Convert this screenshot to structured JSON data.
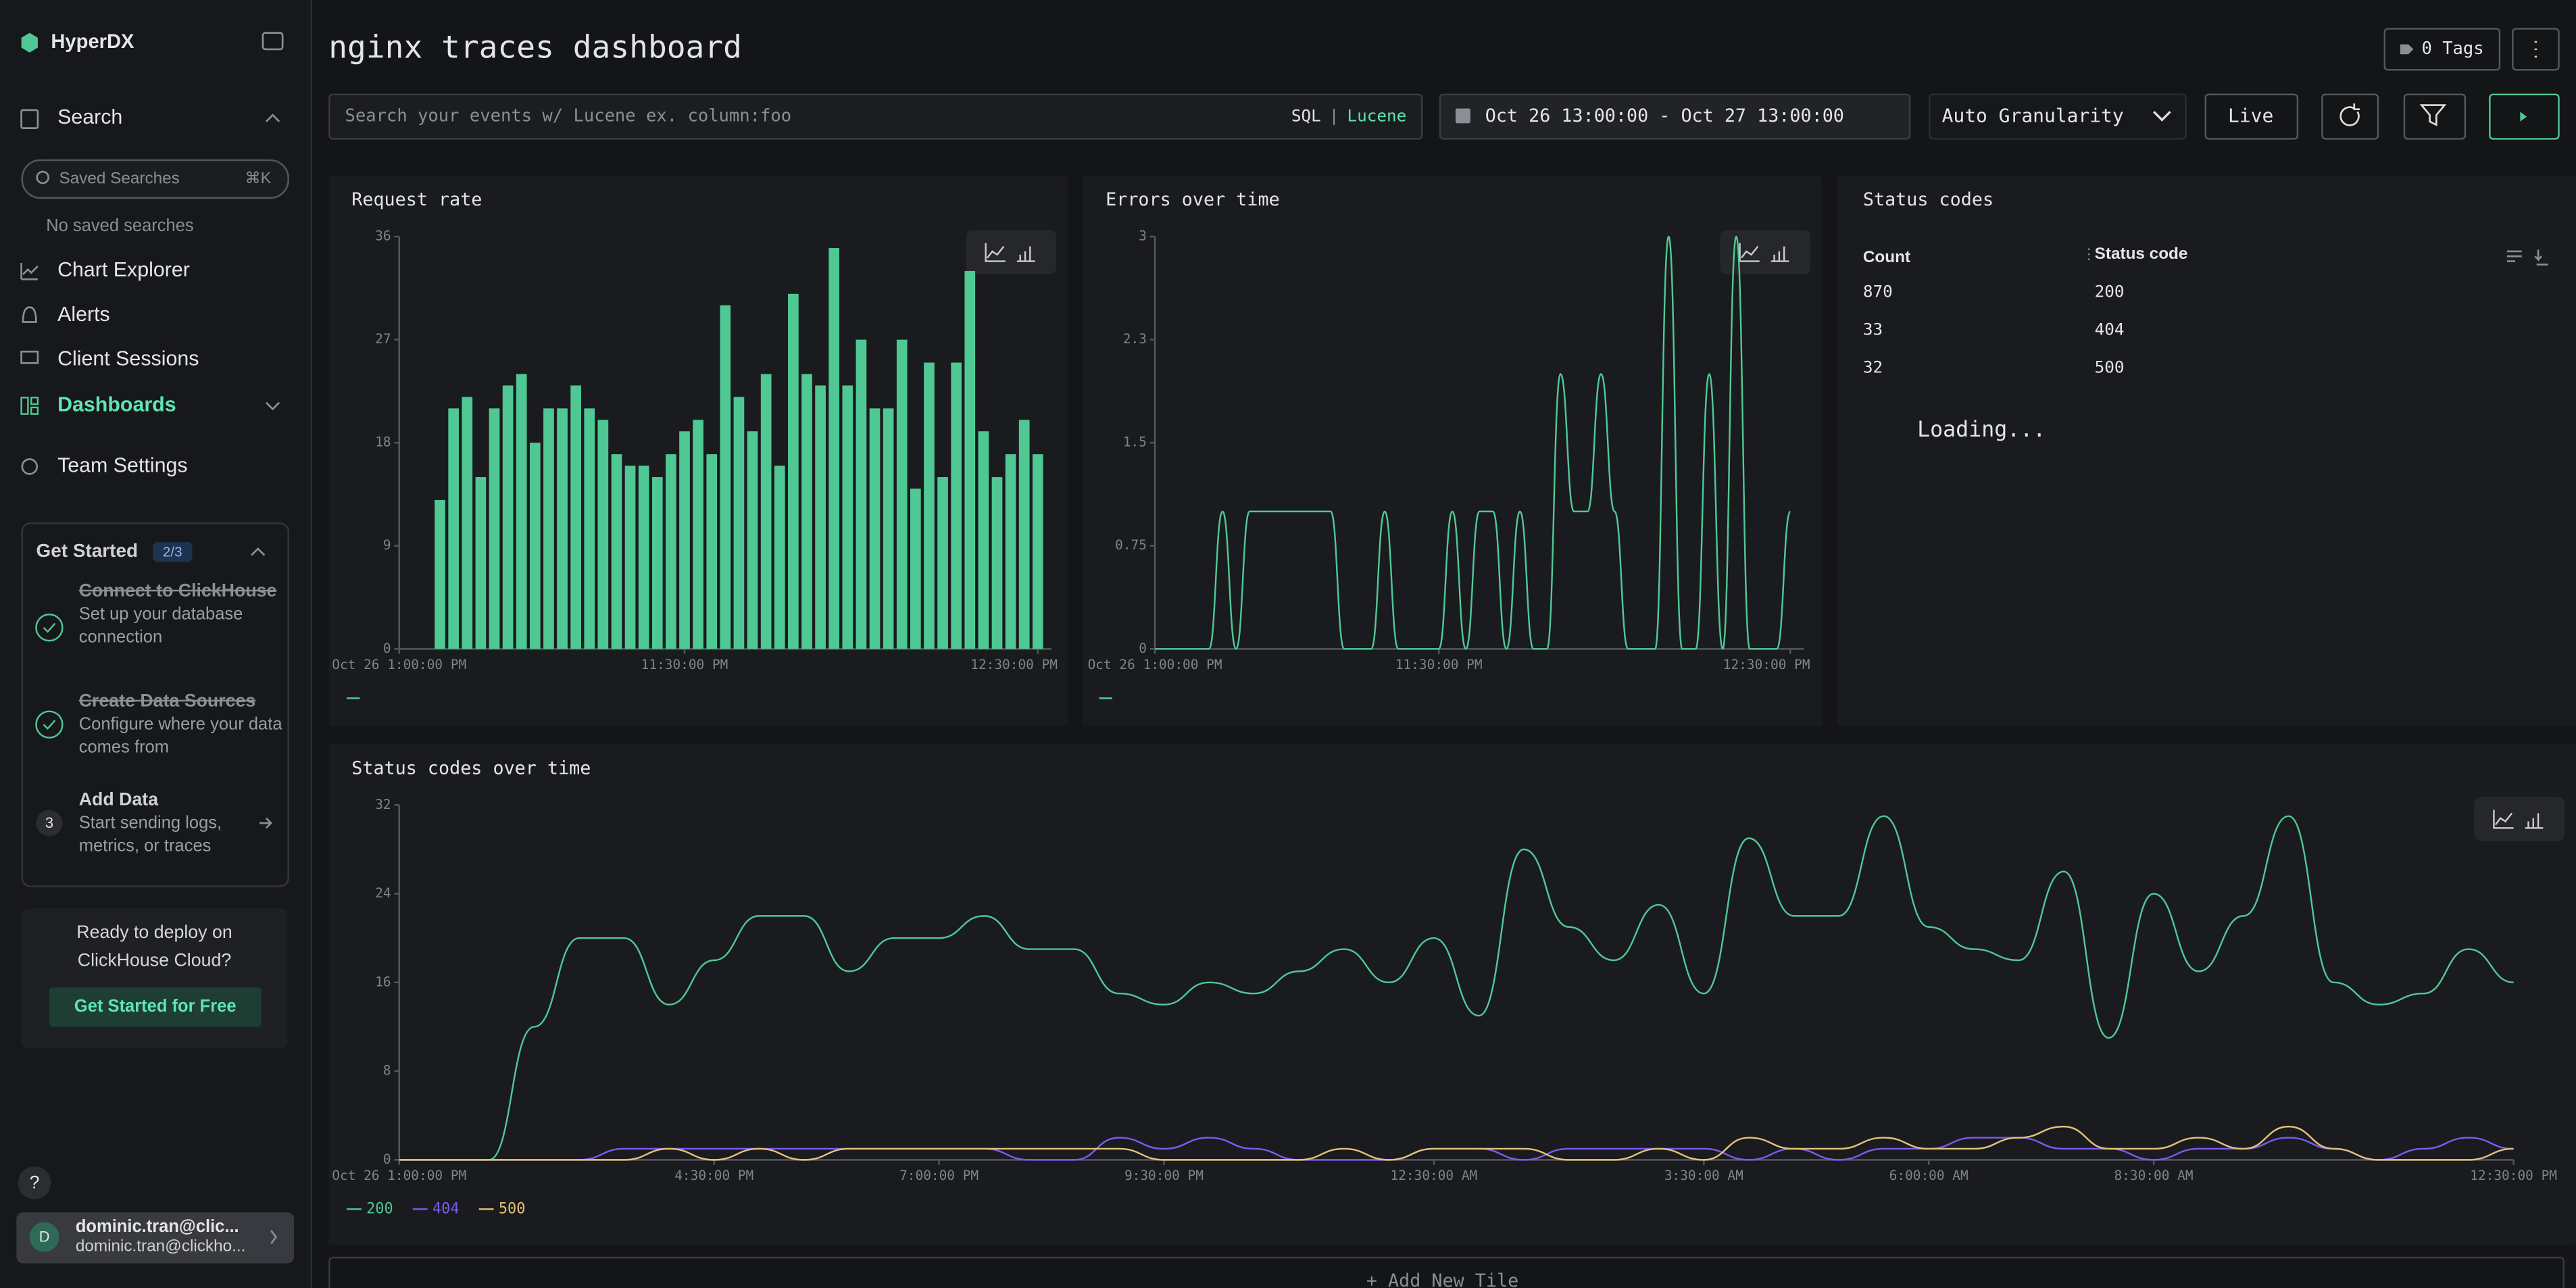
{
  "sidebar": {
    "brand": "HyperDX",
    "search": "Search",
    "saved_search_placeholder": "Saved Searches",
    "shortcut": "⌘K",
    "no_saved": "No saved searches",
    "nav": [
      "Chart Explorer",
      "Alerts",
      "Client Sessions",
      "Dashboards",
      "Team Settings"
    ],
    "get_started": {
      "title": "Get Started",
      "progress": "2/3",
      "steps": [
        {
          "title": "Connect to ClickHouse",
          "description": "Set up your database connection"
        },
        {
          "title": "Create Data Sources",
          "description": "Configure where your data comes from"
        },
        {
          "number": "3",
          "title": "Add Data",
          "description": "Start sending logs, metrics, or traces"
        }
      ]
    },
    "deploy": {
      "text": "Ready to deploy on ClickHouse Cloud?",
      "button": "Get Started for Free"
    },
    "help": "?",
    "user": {
      "initial": "D",
      "name": "dominic.tran@clic...",
      "email": "dominic.tran@clickho..."
    }
  },
  "header": {
    "title": "nginx traces dashboard",
    "tags": "0 Tags"
  },
  "toolbar": {
    "search_placeholder": "Search your events w/ Lucene ex. column:foo",
    "sql": "SQL",
    "separator": "|",
    "lucene": "Lucene",
    "date_range": "Oct 26 13:00:00 - Oct 27 13:00:00",
    "granularity": "Auto Granularity",
    "live": "Live"
  },
  "chart_data": [
    {
      "type": "bar",
      "title": "Request rate",
      "color": "#4fc894",
      "x": [
        1.5,
        2,
        2.5,
        3,
        3.5,
        4,
        4.5,
        5,
        5.5,
        6,
        6.5,
        7,
        7.5,
        8,
        8.5,
        9,
        9.5,
        10,
        10.5,
        11,
        11.5,
        12,
        12.5,
        13,
        13.5,
        14,
        14.5,
        15,
        15.5,
        16,
        16.5,
        17,
        17.5,
        18,
        18.5,
        19,
        19.5,
        20,
        20.5,
        21,
        21.5,
        22,
        22.5,
        23,
        23.5
      ],
      "values": [
        13,
        21,
        22,
        15,
        21,
        23,
        24,
        18,
        21,
        21,
        23,
        21,
        20,
        17,
        16,
        16,
        15,
        17,
        19,
        20,
        17,
        30,
        22,
        19,
        24,
        16,
        31,
        24,
        23,
        35,
        23,
        27,
        21,
        21,
        27,
        14,
        25,
        15,
        25,
        33,
        19,
        15,
        17,
        20,
        17
      ],
      "xlim": [
        0,
        24
      ],
      "xticks": [
        {
          "value": 0,
          "label": "Oct 26 1:00:00 PM"
        },
        {
          "value": 10.5,
          "label": "11:30:00 PM"
        },
        {
          "value": 23.5,
          "label": "12:30:00 PM"
        }
      ],
      "ylim": [
        0,
        36
      ],
      "yticks": [
        0,
        9,
        18,
        27,
        36
      ]
    },
    {
      "type": "line",
      "title": "Errors over time",
      "color": "#4fc894",
      "x": [
        0,
        0.5,
        1,
        1.5,
        2,
        2.5,
        3,
        3.5,
        4,
        4.5,
        5,
        5.5,
        6,
        6.5,
        7,
        7.5,
        8,
        8.5,
        9,
        9.5,
        10,
        10.5,
        11,
        11.5,
        12,
        12.5,
        13,
        13.5,
        14,
        14.5,
        15,
        15.5,
        16,
        16.5,
        17,
        17.5,
        18,
        18.5,
        19,
        19.5,
        20,
        20.5,
        21,
        21.5,
        22,
        22.5,
        23,
        23.5
      ],
      "values": [
        0,
        0,
        0,
        0,
        0,
        1,
        0,
        1,
        1,
        1,
        1,
        1,
        1,
        1,
        0,
        0,
        0,
        1,
        0,
        0,
        0,
        0,
        1,
        0,
        1,
        1,
        0,
        1,
        0,
        0,
        2,
        1,
        1,
        2,
        1,
        0,
        0,
        0,
        3,
        0,
        0,
        2,
        0,
        3,
        0,
        0,
        0,
        1
      ],
      "xlim": [
        0,
        24
      ],
      "xticks": [
        {
          "value": 0,
          "label": "Oct 26 1:00:00 PM"
        },
        {
          "value": 10.5,
          "label": "11:30:00 PM"
        },
        {
          "value": 23.5,
          "label": "12:30:00 PM"
        }
      ],
      "ylim": [
        0,
        3
      ],
      "yticks": [
        0,
        0.75,
        1.5,
        {
          "value": 2.25,
          "label": "2.3"
        },
        3
      ]
    },
    {
      "type": "line",
      "title": "Status codes over time",
      "x": [
        0,
        0.5,
        1,
        1.5,
        2,
        2.5,
        3,
        3.5,
        4,
        4.5,
        5,
        5.5,
        6,
        6.5,
        7,
        7.5,
        8,
        8.5,
        9,
        9.5,
        10,
        10.5,
        11,
        11.5,
        12,
        12.5,
        13,
        13.5,
        14,
        14.5,
        15,
        15.5,
        16,
        16.5,
        17,
        17.5,
        18,
        18.5,
        19,
        19.5,
        20,
        20.5,
        21,
        21.5,
        22,
        22.5,
        23,
        23.5
      ],
      "series": [
        {
          "name": "200",
          "color": "#4fc894",
          "values": [
            0,
            0,
            0,
            12,
            20,
            20,
            14,
            18,
            22,
            22,
            17,
            20,
            20,
            22,
            19,
            19,
            15,
            14,
            16,
            15,
            17,
            19,
            16,
            20,
            13,
            28,
            21,
            18,
            23,
            15,
            29,
            22,
            22,
            31,
            21,
            19,
            18,
            26,
            11,
            24,
            17,
            22,
            31,
            16,
            14,
            15,
            19,
            16
          ]
        },
        {
          "name": "404",
          "color": "#7a5cf0",
          "values": [
            0,
            0,
            0,
            0,
            0,
            1,
            1,
            1,
            1,
            1,
            1,
            1,
            1,
            1,
            0,
            0,
            2,
            1,
            2,
            1,
            0,
            0,
            0,
            1,
            1,
            0,
            1,
            1,
            1,
            1,
            0,
            1,
            0,
            1,
            1,
            2,
            2,
            1,
            1,
            0,
            1,
            1,
            2,
            1,
            0,
            1,
            2,
            1
          ]
        },
        {
          "name": "500",
          "color": "#e3c27a",
          "values": [
            0,
            0,
            0,
            0,
            0,
            0,
            1,
            0,
            1,
            0,
            1,
            1,
            1,
            1,
            1,
            1,
            1,
            0,
            0,
            0,
            0,
            1,
            0,
            1,
            1,
            1,
            0,
            0,
            1,
            0,
            2,
            1,
            1,
            2,
            1,
            1,
            2,
            3,
            1,
            1,
            2,
            1,
            3,
            1,
            0,
            0,
            0,
            1
          ]
        }
      ],
      "xlim": [
        0,
        23.5
      ],
      "xticks": [
        {
          "value": 0,
          "label": "Oct 26 1:00:00 PM"
        },
        {
          "value": 3.5,
          "label": "4:30:00 PM"
        },
        {
          "value": 6,
          "label": "7:00:00 PM"
        },
        {
          "value": 8.5,
          "label": "9:30:00 PM"
        },
        {
          "value": 11.5,
          "label": "12:30:00 AM"
        },
        {
          "value": 14.5,
          "label": "3:30:00 AM"
        },
        {
          "value": 17,
          "label": "6:00:00 AM"
        },
        {
          "value": 19.5,
          "label": "8:30:00 AM"
        },
        {
          "value": 23.5,
          "label": "12:30:00 PM"
        }
      ],
      "ylim": [
        0,
        32
      ],
      "yticks": [
        0,
        8,
        16,
        24,
        32
      ]
    }
  ],
  "table": {
    "title": "Status codes",
    "columns": [
      "Count",
      "Status code"
    ],
    "rows": [
      [
        870,
        "200"
      ],
      [
        33,
        "404"
      ],
      [
        32,
        "500"
      ]
    ],
    "status": "Loading..."
  },
  "footer": {
    "add_tile": "+ Add New Tile"
  }
}
